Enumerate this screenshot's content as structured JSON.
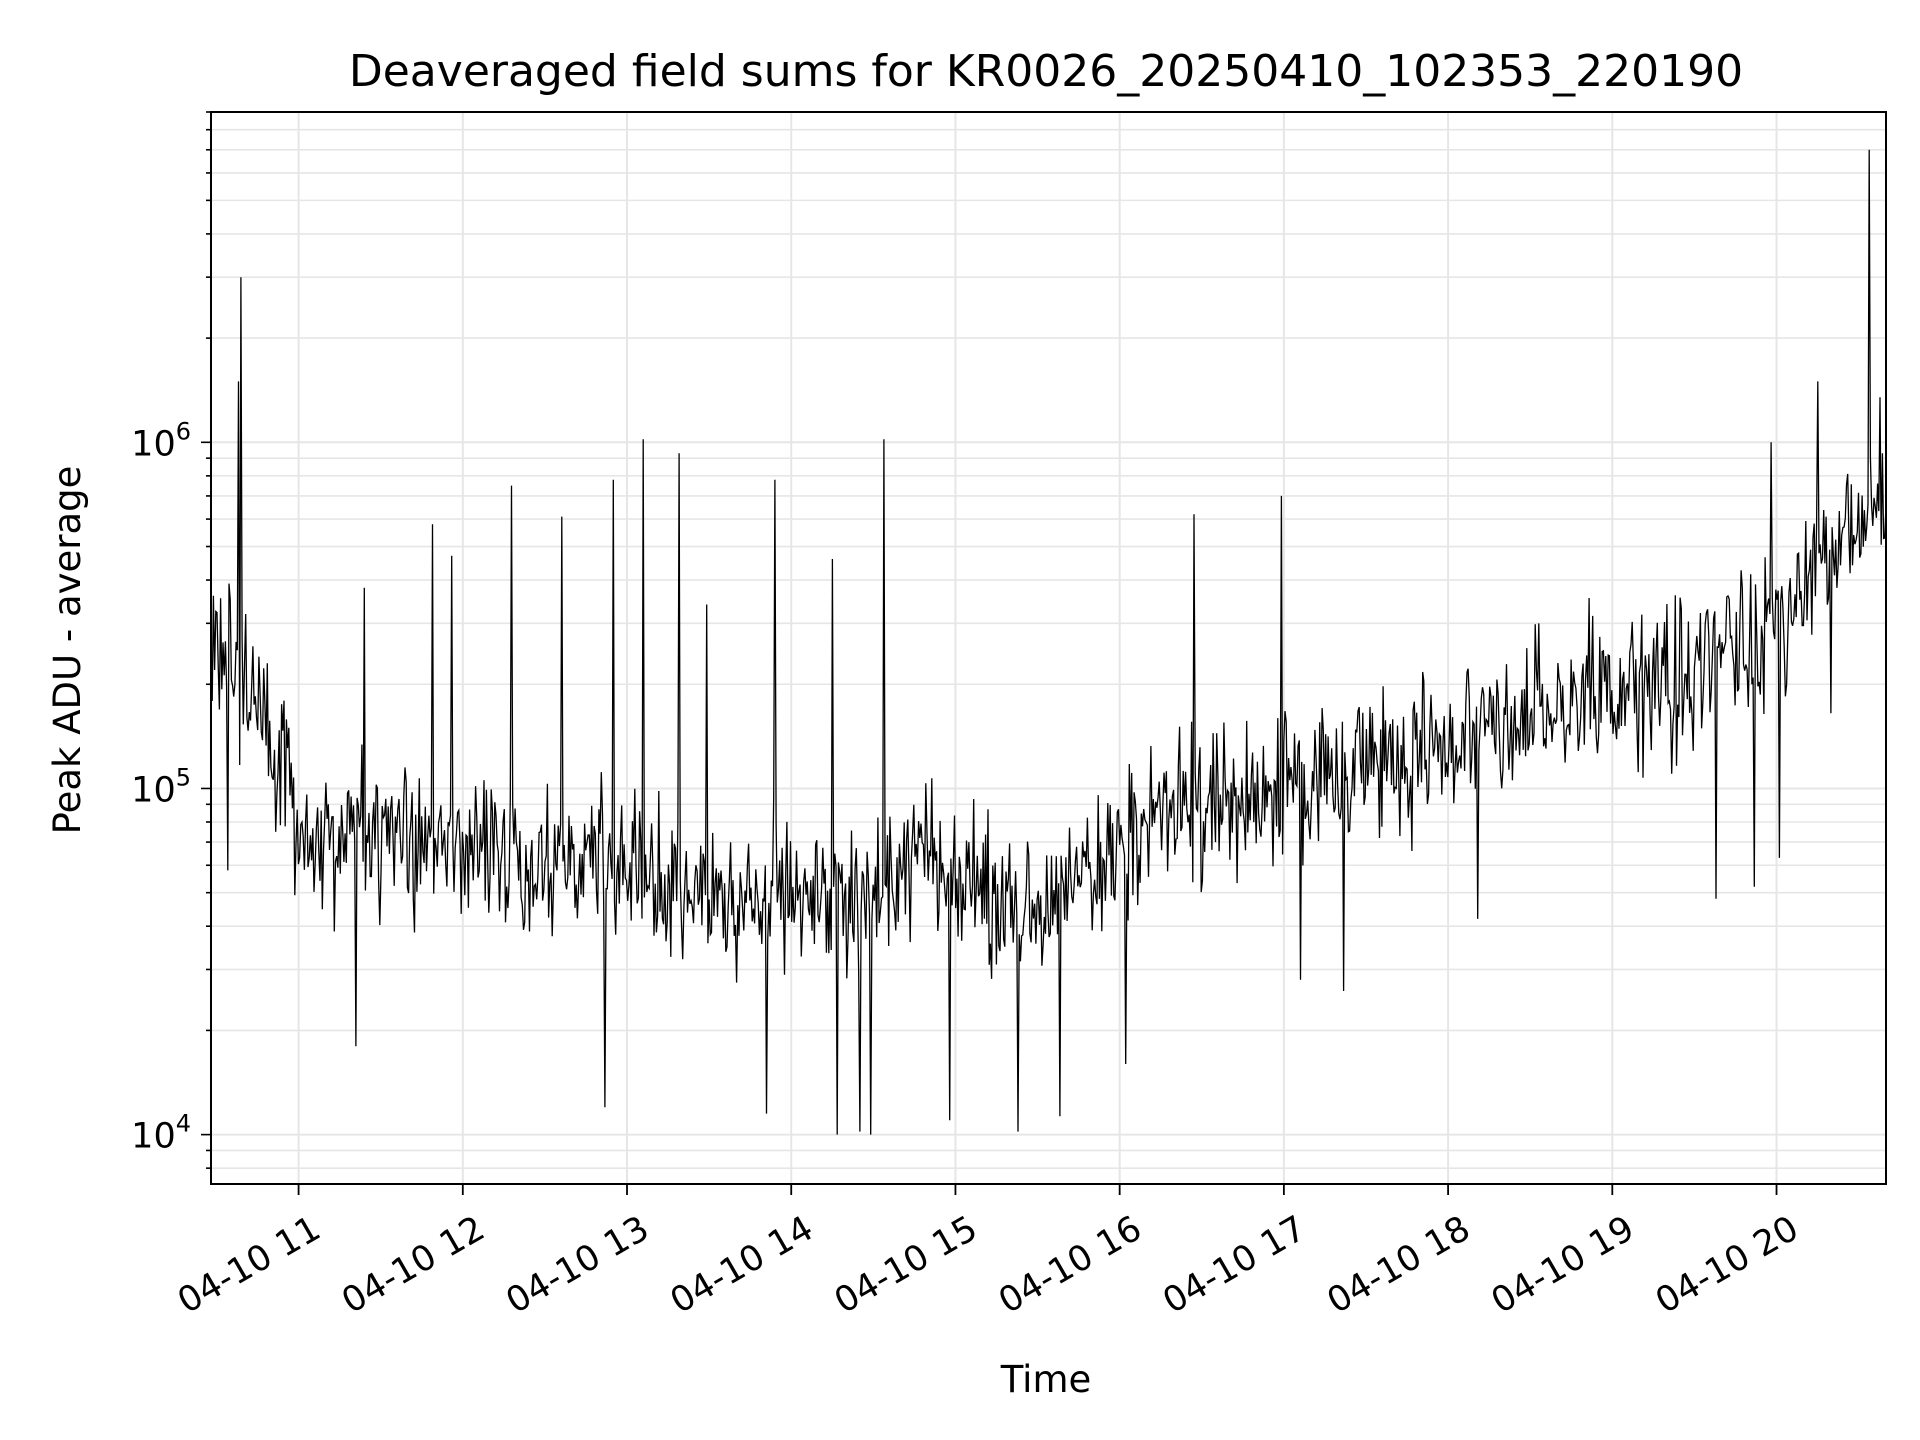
{
  "chart_data": {
    "type": "line",
    "title": "Deaveraged field sums for KR0026_20250410_102353_220190",
    "xlabel": "Time",
    "ylabel": "Peak ADU - average",
    "y_scale": "log",
    "ylim": [
      7200,
      9000000
    ],
    "xlim": [
      "2025-04-10 10:28",
      "2025-04-10 20:40"
    ],
    "x_ticks": [
      {
        "label": "04-10 11",
        "time": "2025-04-10 11:00"
      },
      {
        "label": "04-10 12",
        "time": "2025-04-10 12:00"
      },
      {
        "label": "04-10 13",
        "time": "2025-04-10 13:00"
      },
      {
        "label": "04-10 14",
        "time": "2025-04-10 14:00"
      },
      {
        "label": "04-10 15",
        "time": "2025-04-10 15:00"
      },
      {
        "label": "04-10 16",
        "time": "2025-04-10 16:00"
      },
      {
        "label": "04-10 17",
        "time": "2025-04-10 17:00"
      },
      {
        "label": "04-10 18",
        "time": "2025-04-10 18:00"
      },
      {
        "label": "04-10 19",
        "time": "2025-04-10 19:00"
      },
      {
        "label": "04-10 20",
        "time": "2025-04-10 20:00"
      }
    ],
    "y_ticks": [
      {
        "value": 10000,
        "base": "10",
        "exp": "4"
      },
      {
        "value": 100000,
        "base": "10",
        "exp": "5"
      },
      {
        "value": 1000000,
        "base": "10",
        "exp": "6"
      }
    ],
    "grid": true,
    "line_color": "#000000",
    "grid_color": "#e6e6e6",
    "trend": [
      {
        "time": "2025-04-10 10:28",
        "value": 250000
      },
      {
        "time": "2025-04-10 10:45",
        "value": 200000
      },
      {
        "time": "2025-04-10 11:00",
        "value": 75000
      },
      {
        "time": "2025-04-10 11:30",
        "value": 70000
      },
      {
        "time": "2025-04-10 12:00",
        "value": 65000
      },
      {
        "time": "2025-04-10 12:30",
        "value": 62000
      },
      {
        "time": "2025-04-10 13:00",
        "value": 58000
      },
      {
        "time": "2025-04-10 13:30",
        "value": 52000
      },
      {
        "time": "2025-04-10 14:00",
        "value": 50000
      },
      {
        "time": "2025-04-10 14:30",
        "value": 48000
      },
      {
        "time": "2025-04-10 14:45",
        "value": 75000
      },
      {
        "time": "2025-04-10 15:00",
        "value": 50000
      },
      {
        "time": "2025-04-10 15:30",
        "value": 45000
      },
      {
        "time": "2025-04-10 16:00",
        "value": 70000
      },
      {
        "time": "2025-04-10 16:30",
        "value": 90000
      },
      {
        "time": "2025-04-10 17:00",
        "value": 100000
      },
      {
        "time": "2025-04-10 17:30",
        "value": 110000
      },
      {
        "time": "2025-04-10 18:00",
        "value": 140000
      },
      {
        "time": "2025-04-10 18:30",
        "value": 160000
      },
      {
        "time": "2025-04-10 19:00",
        "value": 200000
      },
      {
        "time": "2025-04-10 19:30",
        "value": 220000
      },
      {
        "time": "2025-04-10 20:00",
        "value": 300000
      },
      {
        "time": "2025-04-10 20:15",
        "value": 450000
      },
      {
        "time": "2025-04-10 20:40",
        "value": 600000
      }
    ],
    "spikes": [
      {
        "time": "2025-04-10 10:38",
        "value": 1500000
      },
      {
        "time": "2025-04-10 10:39",
        "value": 3000000
      },
      {
        "time": "2025-04-10 11:24",
        "value": 380000
      },
      {
        "time": "2025-04-10 11:49",
        "value": 580000
      },
      {
        "time": "2025-04-10 11:56",
        "value": 470000
      },
      {
        "time": "2025-04-10 12:18",
        "value": 750000
      },
      {
        "time": "2025-04-10 12:36",
        "value": 610000
      },
      {
        "time": "2025-04-10 12:55",
        "value": 780000
      },
      {
        "time": "2025-04-10 13:06",
        "value": 1020000
      },
      {
        "time": "2025-04-10 13:19",
        "value": 930000
      },
      {
        "time": "2025-04-10 13:29",
        "value": 340000
      },
      {
        "time": "2025-04-10 13:54",
        "value": 780000
      },
      {
        "time": "2025-04-10 14:15",
        "value": 460000
      },
      {
        "time": "2025-04-10 14:34",
        "value": 1020000
      },
      {
        "time": "2025-04-10 16:27",
        "value": 620000
      },
      {
        "time": "2025-04-10 16:59",
        "value": 700000
      },
      {
        "time": "2025-04-10 19:58",
        "value": 1000000
      },
      {
        "time": "2025-04-10 20:15",
        "value": 1500000
      },
      {
        "time": "2025-04-10 20:34",
        "value": 7000000
      },
      {
        "time": "2025-04-10 20:38",
        "value": 1350000
      }
    ],
    "dips": [
      {
        "time": "2025-04-10 10:34",
        "value": 58000
      },
      {
        "time": "2025-04-10 11:21",
        "value": 18000
      },
      {
        "time": "2025-04-10 12:52",
        "value": 12000
      },
      {
        "time": "2025-04-10 13:51",
        "value": 11500
      },
      {
        "time": "2025-04-10 14:17",
        "value": 10000
      },
      {
        "time": "2025-04-10 14:25",
        "value": 10200
      },
      {
        "time": "2025-04-10 14:29",
        "value": 10000
      },
      {
        "time": "2025-04-10 14:58",
        "value": 11000
      },
      {
        "time": "2025-04-10 15:23",
        "value": 10200
      },
      {
        "time": "2025-04-10 15:38",
        "value": 11300
      },
      {
        "time": "2025-04-10 16:02",
        "value": 16000
      },
      {
        "time": "2025-04-10 17:06",
        "value": 28000
      },
      {
        "time": "2025-04-10 17:22",
        "value": 26000
      },
      {
        "time": "2025-04-10 18:11",
        "value": 42000
      },
      {
        "time": "2025-04-10 19:38",
        "value": 48000
      },
      {
        "time": "2025-04-10 19:52",
        "value": 52000
      },
      {
        "time": "2025-04-10 20:01",
        "value": 63000
      },
      {
        "time": "2025-04-10 20:20",
        "value": 165000
      }
    ]
  }
}
